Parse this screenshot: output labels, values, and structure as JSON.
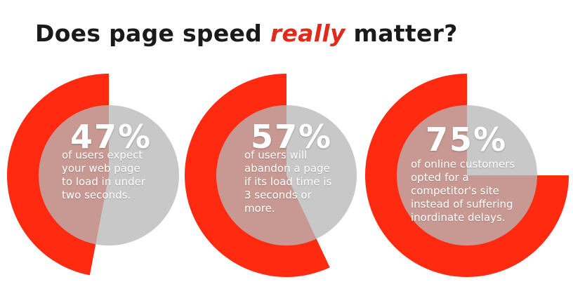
{
  "title": {
    "before": "Does page speed ",
    "emphasis": "really",
    "after": " matter?"
  },
  "colors": {
    "accent": "#ff2a10",
    "overlay": "#b9b9b9",
    "text": "#1a1a1a"
  },
  "chart_data": {
    "type": "pie",
    "title": "Does page speed really matter?",
    "stats": [
      {
        "value": 47,
        "label": "47%",
        "description": "of users expect\nyour web page\nto load in under\ntwo seconds."
      },
      {
        "value": 57,
        "label": "57%",
        "description": "of users will\nabandon a page\nif its load time is\n3 seconds or\nmore."
      },
      {
        "value": 75,
        "label": "75%",
        "description": "of online customers\nopted for a\ncompetitor's site\ninstead of suffering\ninordinate delays."
      }
    ]
  }
}
